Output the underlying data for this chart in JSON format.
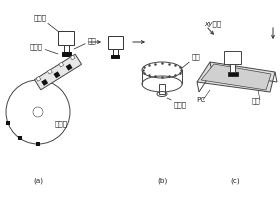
{
  "bg_color": "#ffffff",
  "line_color": "#444444",
  "arrow_color": "#333333",
  "label_color": "#222222",
  "labels": {
    "zhuantou": "贴片头",
    "xizui": "吸嘴",
    "yuanqijian": "元器件",
    "songliaoqi": "送料器",
    "guangyuan": "光源",
    "shexiangtou": "摄像头",
    "xy_motion": "xy运动",
    "pc": "PC",
    "handian": "焊盘",
    "sub_a": "(a)",
    "sub_b": "(b)",
    "sub_c": "(c)"
  }
}
